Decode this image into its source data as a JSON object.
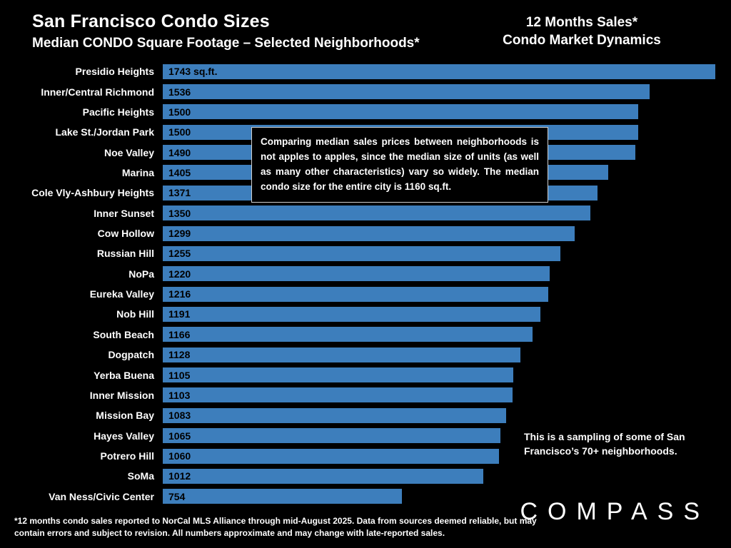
{
  "header": {
    "title": "San Francisco Condo Sizes",
    "subtitle": "Median CONDO Square Footage – Selected Neighborhoods*",
    "right_line1": "12 Months Sales*",
    "right_line2": "Condo Market Dynamics"
  },
  "chart_data": {
    "type": "bar",
    "orientation": "horizontal",
    "title": "Median CONDO Square Footage – Selected Neighborhoods",
    "unit": "sq.ft.",
    "max_value": 1743,
    "bar_color": "#3d7ebc",
    "categories": [
      "Presidio Heights",
      "Inner/Central Richmond",
      "Pacific Heights",
      "Lake St./Jordan Park",
      "Noe Valley",
      "Marina",
      "Cole Vly-Ashbury Heights",
      "Inner Sunset",
      "Cow Hollow",
      "Russian Hill",
      "NoPa",
      "Eureka Valley",
      "Nob Hill",
      "South Beach",
      "Dogpatch",
      "Yerba Buena",
      "Inner Mission",
      "Mission Bay",
      "Hayes Valley",
      "Potrero Hill",
      "SoMa",
      "Van Ness/Civic Center"
    ],
    "values": [
      1743,
      1536,
      1500,
      1500,
      1490,
      1405,
      1371,
      1350,
      1299,
      1255,
      1220,
      1216,
      1191,
      1166,
      1128,
      1105,
      1103,
      1083,
      1065,
      1060,
      1012,
      754
    ],
    "value_labels": [
      "1743 sq.ft.",
      "1536",
      "1500",
      "1500",
      "1490",
      "1405",
      "1371",
      "1350",
      "1299",
      "1255",
      "1220",
      "1216",
      "1191",
      "1166",
      "1128",
      "1105",
      "1103",
      "1083",
      "1065",
      "1060",
      "1012",
      "754"
    ]
  },
  "annotations": {
    "overlay_box": "Comparing median sales prices between neighborhoods is not apples to apples, since the median size of units (as well as many other characteristics) vary so widely. The median condo size for the entire city is 1160 sq.ft.",
    "sampling_note": "This is a sampling of some of San Francisco’s 70+ neighborhoods."
  },
  "footer": {
    "disclaimer": "*12 months condo sales reported to NorCal MLS Alliance through mid-August 2025. Data from sources deemed reliable, but may contain errors and subject to revision. All numbers approximate and may change with late-reported sales.",
    "logo": "COMPASS"
  }
}
